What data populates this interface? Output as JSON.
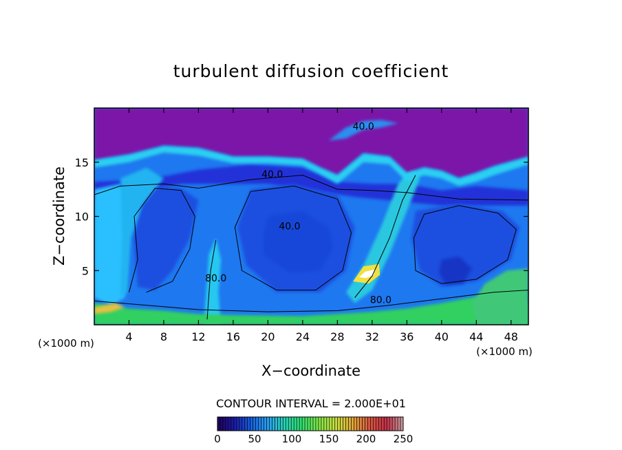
{
  "chart_data": {
    "type": "heatmap",
    "title": "turbulent diffusion coefficient",
    "xlabel": "X−coordinate",
    "ylabel": "Z−coordinate",
    "x_unit_left": "(×1000 m)",
    "x_unit_right": "(×1000 m)",
    "xlim": [
      0,
      50
    ],
    "ylim": [
      0,
      20
    ],
    "x_ticks": [
      4,
      8,
      12,
      16,
      20,
      24,
      28,
      32,
      36,
      40,
      44,
      48
    ],
    "y_ticks": [
      5,
      10,
      15
    ],
    "contour_interval_text": "CONTOUR INTERVAL = 2.000E+01",
    "contour_labels": [
      {
        "text": "40.0",
        "x": 20.5,
        "y": 13.6
      },
      {
        "text": "40.0",
        "x": 22.5,
        "y": 8.8
      },
      {
        "text": "80.0",
        "x": 14.0,
        "y": 4.0
      },
      {
        "text": "80.0",
        "x": 33.0,
        "y": 2.0
      },
      {
        "text": "40.0",
        "x": 31.0,
        "y": 18.0
      }
    ],
    "colorbar": {
      "min": 0,
      "max": 250,
      "tick_values": [
        0,
        50,
        100,
        150,
        200,
        250
      ],
      "tick_labels": [
        "0",
        "50",
        "100",
        "150",
        "200",
        "250"
      ],
      "colors": [
        "#23005a",
        "#1b1aa8",
        "#1560e0",
        "#2aa0f0",
        "#26d4b4",
        "#30e070",
        "#80e848",
        "#c8e040",
        "#e0a838",
        "#d85840",
        "#c83048",
        "#c8a0a0"
      ]
    },
    "regions": {
      "upper_layer_color": "#7c18a8",
      "cloud_base_color": "#2430d8",
      "interior_color": "#1e78f0",
      "core_color": "#1e50e0",
      "boundary_color": "#2ac0ff",
      "surface_color": "#30d060"
    }
  }
}
